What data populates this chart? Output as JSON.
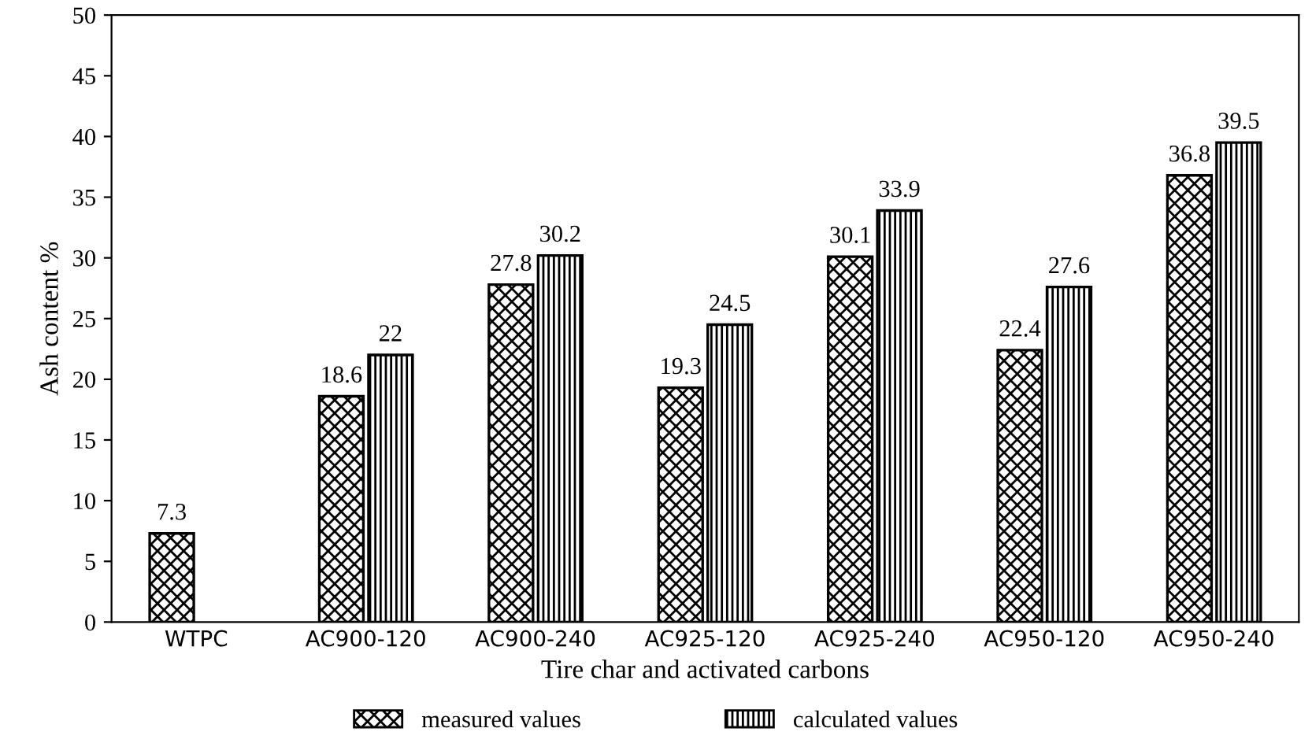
{
  "chart_data": {
    "type": "bar",
    "xlabel": "Tire char and activated carbons",
    "ylabel": "Ash content %",
    "categories": [
      "WTPC",
      "AC900-120",
      "AC900-240",
      "AC925-120",
      "AC925-240",
      "AC950-120",
      "AC950-240"
    ],
    "series": [
      {
        "name": "measured values",
        "color": "#000000",
        "values": [
          7.3,
          18.6,
          27.8,
          19.3,
          30.1,
          22.4,
          36.8
        ]
      },
      {
        "name": "calculated values",
        "color": "#000000",
        "values": [
          null,
          22,
          30.2,
          24.5,
          33.9,
          27.6,
          39.5
        ]
      }
    ],
    "ylim": [
      0,
      50
    ],
    "yticks": [
      0,
      5,
      10,
      15,
      20,
      25,
      30,
      35,
      40,
      45,
      50
    ],
    "data_labels": true,
    "legend": "bottom",
    "grid": false
  }
}
